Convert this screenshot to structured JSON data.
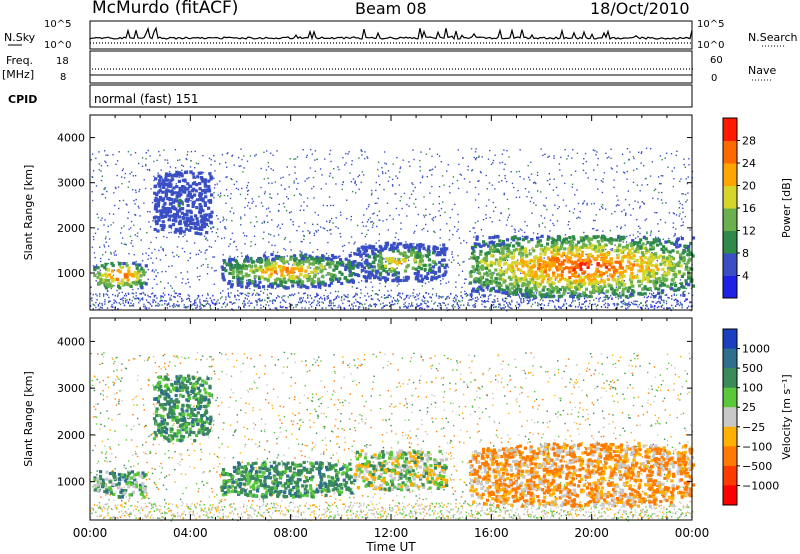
{
  "header": {
    "station": "McMurdo (fitACF)",
    "beam": "Beam 08",
    "date": "18/Oct/2010"
  },
  "strip_panels": {
    "nsky_label": "N.Sky",
    "nsky_ticks": [
      "10^5",
      "10^0"
    ],
    "nsearch_label": "N.Search",
    "nsearch_ticks": [
      "10^5",
      "10^0"
    ],
    "freq_label": "Freq.",
    "freq_unit": "[MHz]",
    "freq_ticks": [
      "18",
      "8"
    ],
    "nave_label": "Nave",
    "nave_ticks": [
      "60",
      "0"
    ],
    "cpid_label": "CPID",
    "cpid_value": "normal (fast) 151"
  },
  "chart_data": [
    {
      "type": "heatmap",
      "title": "",
      "quantity": "Power",
      "ylabel": "Slant Range [km]",
      "xlabel": "Time UT",
      "x_range_hours": [
        0,
        24
      ],
      "ylim": [
        180,
        4500
      ],
      "y_ticks": [
        "1000",
        "2000",
        "3000",
        "4000"
      ],
      "colorbar_label": "Power [dB]",
      "colorbar_ticks": [
        "4",
        "8",
        "12",
        "16",
        "20",
        "24",
        "28"
      ],
      "colorbar_colors": [
        "#1f1fe6",
        "#3a4fc4",
        "#2f8a4a",
        "#6ab04c",
        "#d6d62a",
        "#ffa500",
        "#ff6a00",
        "#ff1a00"
      ],
      "echo_regions": [
        {
          "start_hour": 0.1,
          "end_hour": 2.2,
          "range_km": [
            700,
            1250
          ],
          "peak_power_db": 30
        },
        {
          "start_hour": 2.5,
          "end_hour": 4.8,
          "range_km": [
            1900,
            3300
          ],
          "peak_power_db": 10
        },
        {
          "start_hour": 5.2,
          "end_hour": 10.5,
          "range_km": [
            700,
            1450
          ],
          "peak_power_db": 28
        },
        {
          "start_hour": 10.5,
          "end_hour": 14.2,
          "range_km": [
            850,
            1700
          ],
          "peak_power_db": 22
        },
        {
          "start_hour": 15.1,
          "end_hour": 24.0,
          "range_km": [
            500,
            1850
          ],
          "peak_power_db": 33
        }
      ]
    },
    {
      "type": "heatmap",
      "title": "",
      "quantity": "Velocity",
      "ylabel": "Slant Range [km]",
      "xlabel": "Time UT",
      "x_range_hours": [
        0,
        24
      ],
      "ylim": [
        180,
        4500
      ],
      "y_ticks": [
        "1000",
        "2000",
        "3000",
        "4000"
      ],
      "colorbar_label": "Velocity [m s⁻¹]",
      "colorbar_ticks": [
        "1000",
        "500",
        "100",
        "25",
        "−25",
        "−100",
        "−500",
        "−1000"
      ],
      "colorbar_colors": [
        "#1a3fbf",
        "#2e6f8e",
        "#3a8a5a",
        "#59c93a",
        "#c8c8c8",
        "#ffb000",
        "#ff7a00",
        "#ff3a00",
        "#ff0000"
      ],
      "echo_regions": [
        {
          "start_hour": 0.1,
          "end_hour": 2.2,
          "range_km": [
            700,
            1250
          ],
          "velocity_class": "green"
        },
        {
          "start_hour": 2.5,
          "end_hour": 4.8,
          "range_km": [
            1900,
            3300
          ],
          "velocity_class": "dark-green"
        },
        {
          "start_hour": 5.2,
          "end_hour": 10.5,
          "range_km": [
            700,
            1450
          ],
          "velocity_class": "dark-green"
        },
        {
          "start_hour": 10.5,
          "end_hour": 14.2,
          "range_km": [
            850,
            1700
          ],
          "velocity_class": "grey-yellow"
        },
        {
          "start_hour": 15.1,
          "end_hour": 24.0,
          "range_km": [
            500,
            1850
          ],
          "velocity_class": "orange"
        }
      ]
    }
  ],
  "x_ticks": [
    "00:00",
    "04:00",
    "08:00",
    "12:00",
    "16:00",
    "20:00",
    "00:00"
  ],
  "x_axis_label": "Time UT"
}
